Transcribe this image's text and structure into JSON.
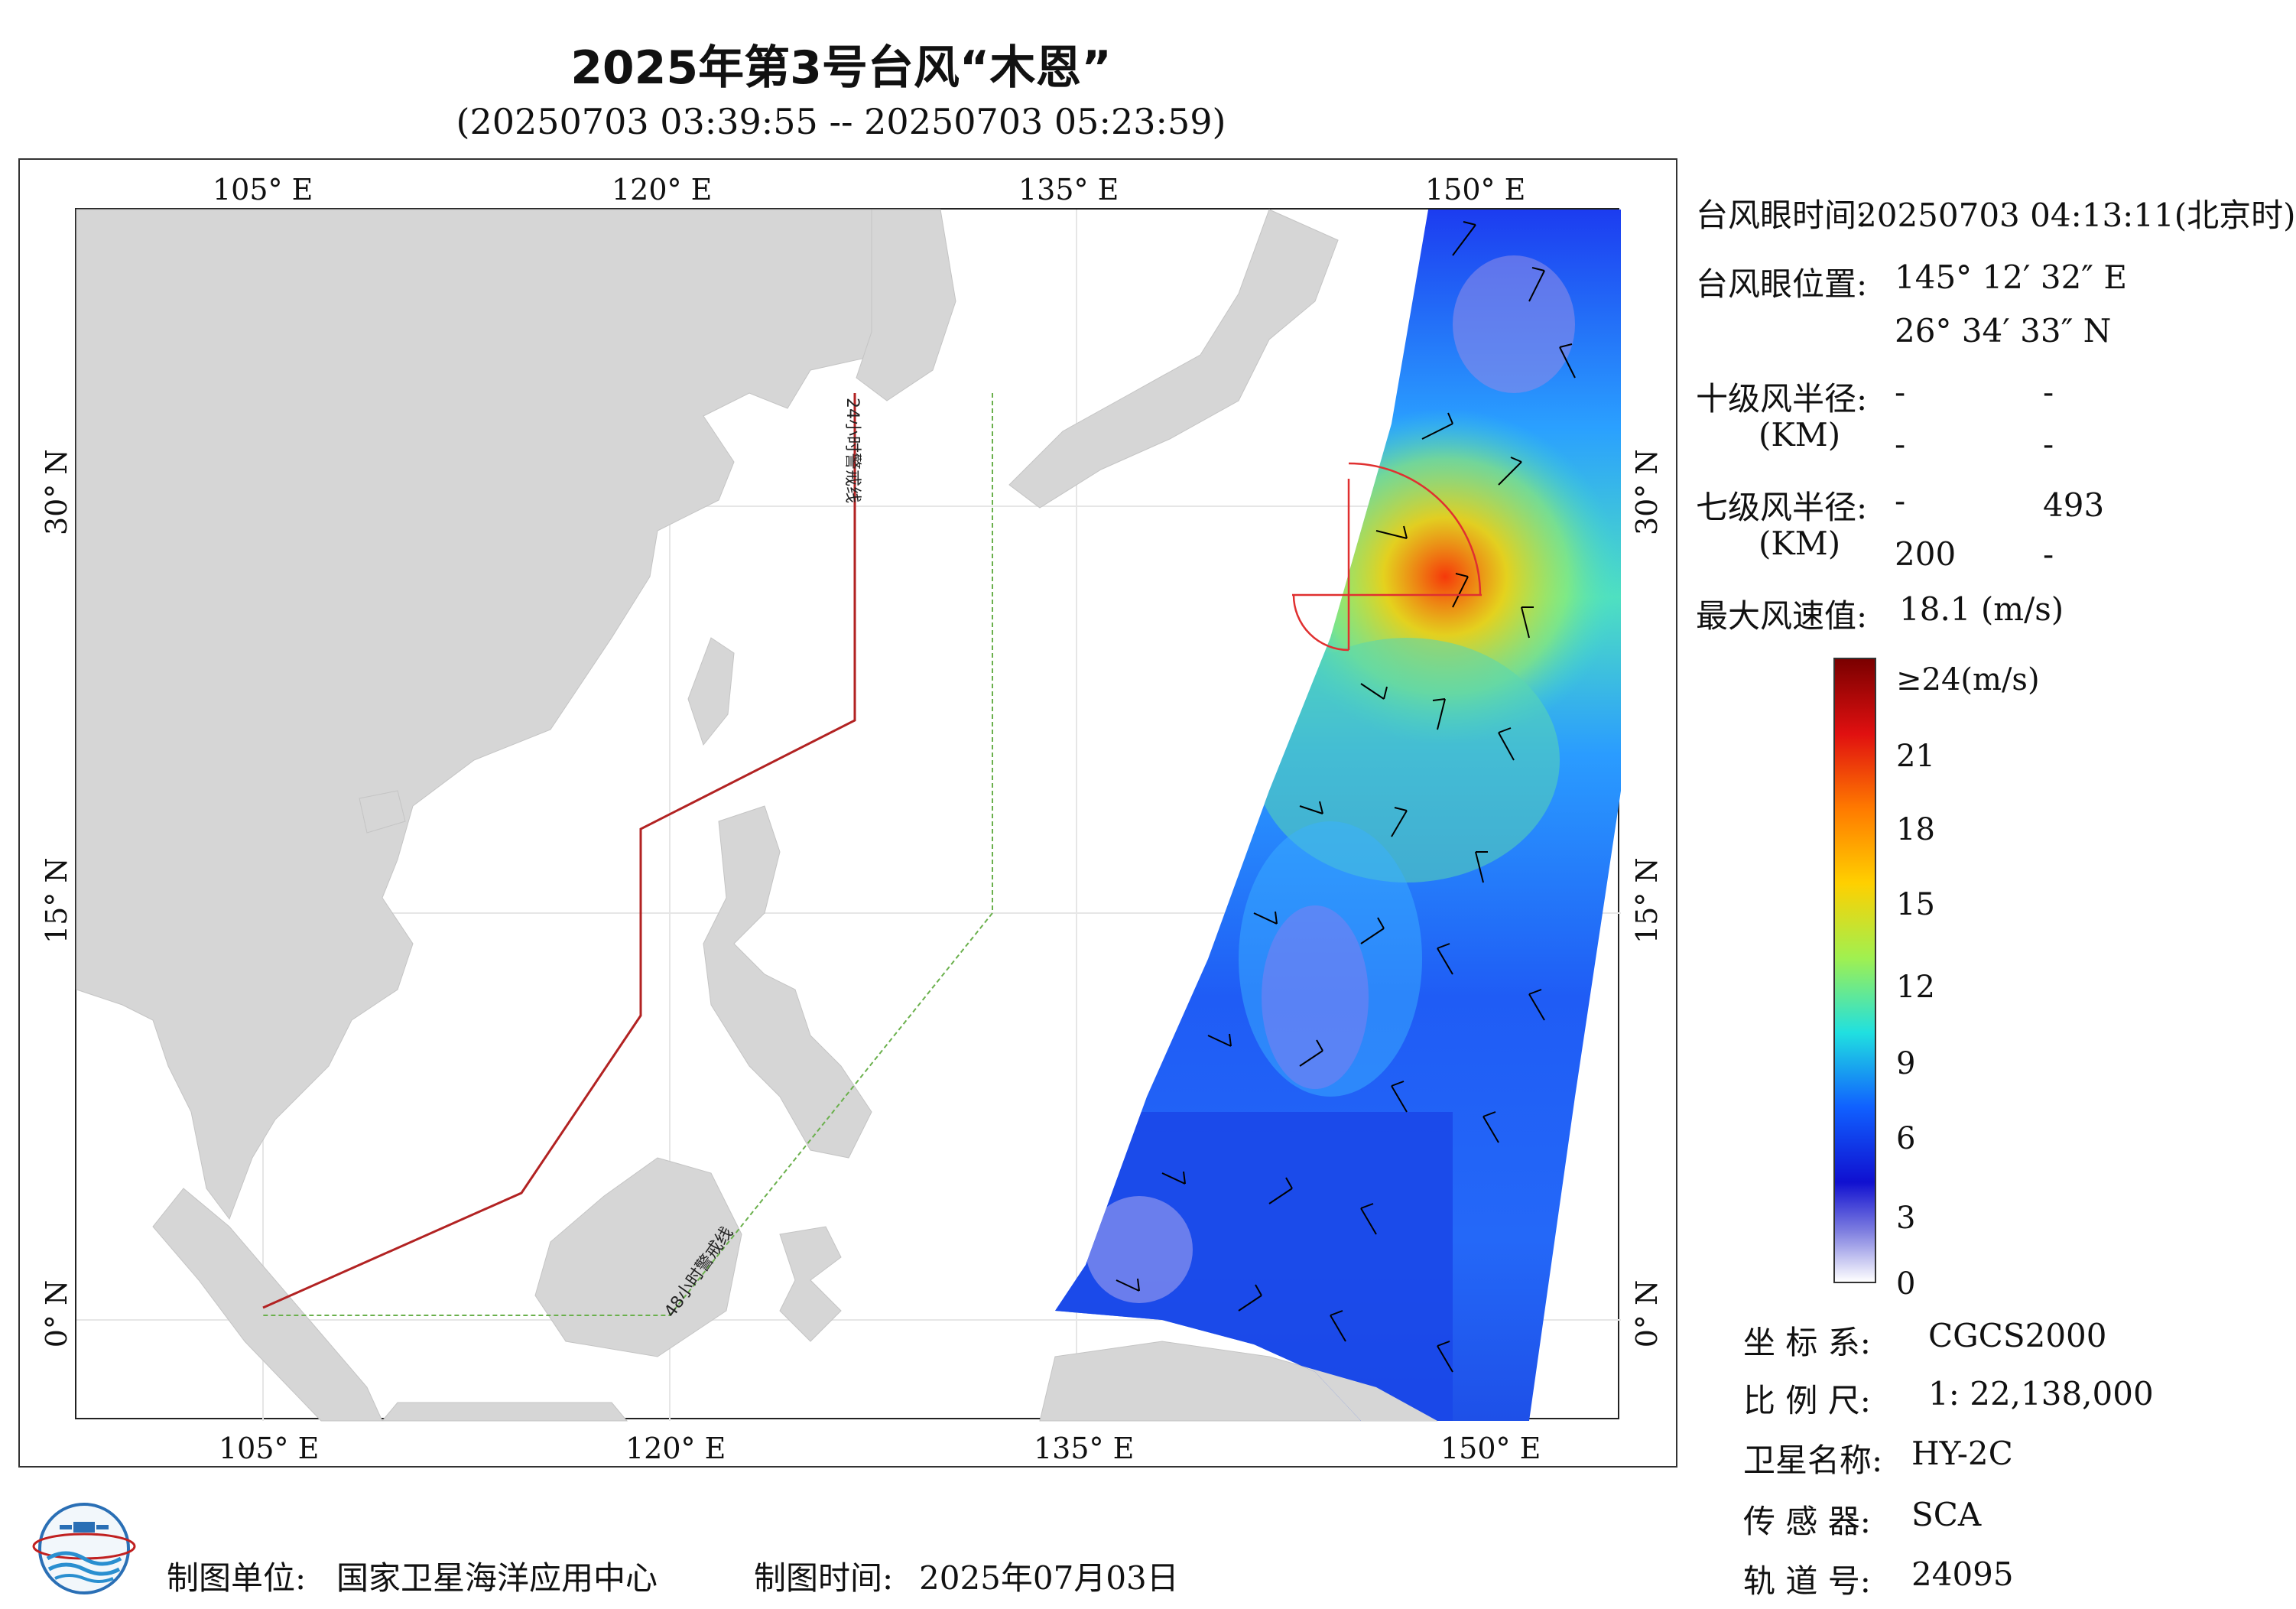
{
  "header": {
    "title": "2025年第3号台风“木恩”",
    "time_range": "(20250703 03:39:55 -- 20250703 05:23:59)"
  },
  "map": {
    "lon_ticks_top": [
      "105° E",
      "120° E",
      "135° E",
      "150° E"
    ],
    "lon_ticks_bottom": [
      "105° E",
      "120° E",
      "135° E",
      "150° E"
    ],
    "lat_ticks_left": [
      "30° N",
      "15° N",
      "0° N"
    ],
    "lat_ticks_right": [
      "30° N",
      "15° N",
      "0° N"
    ],
    "warning_line_24h": "24小时警戒线",
    "warning_line_48h": "48小时警戒线",
    "colors": {
      "land": "#d6d6d6",
      "ocean": "#ffffff",
      "warn24": "#b22222",
      "warn48": "#6ab04c",
      "circle": "#e03030"
    }
  },
  "info": {
    "eye_time_label": "台风眼时间:",
    "eye_time_value": "20250703 04:13:11(北京时)",
    "eye_pos_label": "台风眼位置:",
    "eye_lon": "145° 12′ 32″ E",
    "eye_lat": "26° 34′ 33″ N",
    "r10_label": "十级风半径:",
    "r10_unit": "(KM)",
    "r10_values": [
      "-",
      "-",
      "-",
      "-"
    ],
    "r7_label": "七级风半径:",
    "r7_unit": "(KM)",
    "r7_values": [
      "-",
      "493",
      "200",
      "-"
    ],
    "max_wind_label": "最大风速值:",
    "max_wind_value": "18.1  (m/s)"
  },
  "colorbar": {
    "labels": [
      "≥24(m/s)",
      "21",
      "18",
      "15",
      "12",
      "9",
      "6",
      "3",
      "0"
    ],
    "stops": [
      "#7a0000",
      "#e01010",
      "#ff7a00",
      "#ffd000",
      "#a0f050",
      "#20e0e0",
      "#1060ff",
      "#1010d0",
      "#8080e0",
      "#ffffff"
    ]
  },
  "meta": {
    "crs_label": "坐 标 系:",
    "crs_value": "CGCS2000",
    "scale_label": "比 例 尺:",
    "scale_value": "1: 22,138,000",
    "satellite_label": "卫星名称:",
    "satellite_value": "HY-2C",
    "sensor_label": "传 感 器:",
    "sensor_value": "SCA",
    "orbit_label": "轨 道 号:",
    "orbit_value": "24095"
  },
  "footer": {
    "producer_label": "制图单位:",
    "producer_value": "国家卫星海洋应用中心",
    "date_label": "制图时间:",
    "date_value": "2025年07月03日"
  }
}
